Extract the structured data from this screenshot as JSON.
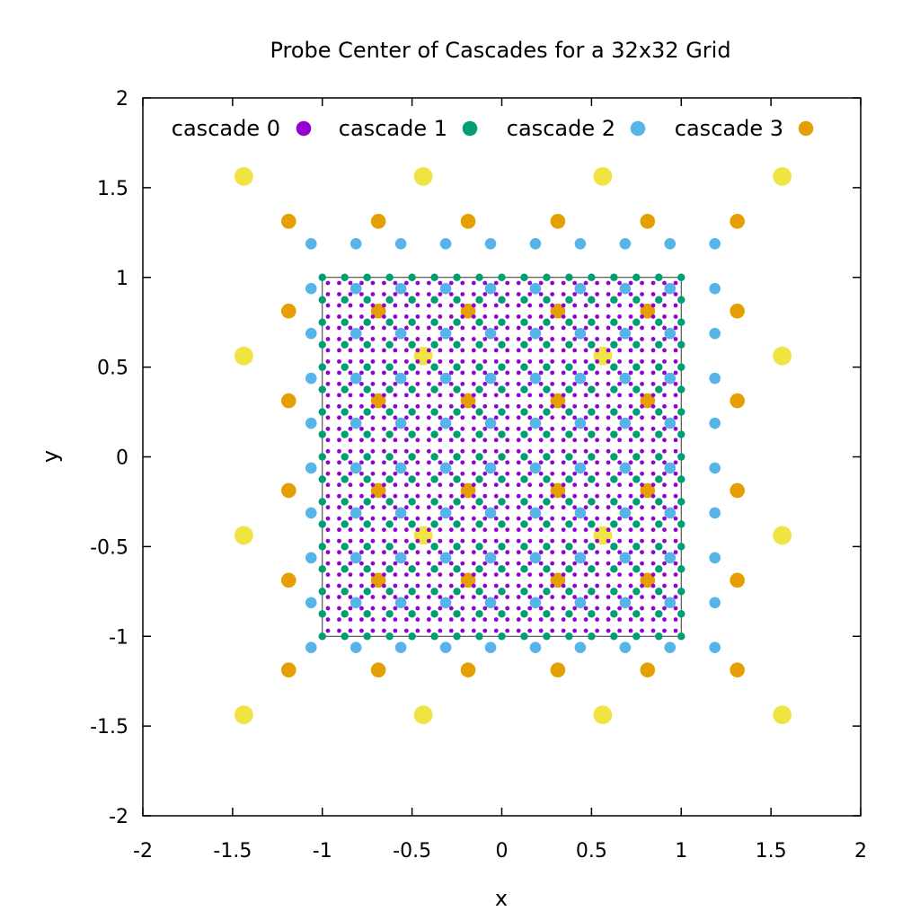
{
  "chart_data": {
    "type": "scatter",
    "title": "Probe Center of Cascades for a 32x32 Grid",
    "xlabel": "x",
    "ylabel": "y",
    "xlim": [
      -2,
      2
    ],
    "ylim": [
      -2,
      2
    ],
    "xticks": [
      "-2",
      "-1.5",
      "-1",
      "-0.5",
      "0",
      "0.5",
      "1",
      "1.5",
      "2"
    ],
    "yticks": [
      "-2",
      "-1.5",
      "-1",
      "-0.5",
      "0",
      "0.5",
      "1",
      "1.5",
      "2"
    ],
    "grid": false,
    "legend_position": "top",
    "boundary_box": [
      -1,
      -1,
      1,
      1
    ],
    "series": [
      {
        "name": "cascade 0",
        "color": "#9400d3",
        "first": -0.96875,
        "step": 0.0625,
        "count": 32,
        "shape": "filled-circle"
      },
      {
        "name": "cascade 1",
        "color": "#009e73",
        "first": -1.0,
        "step": 0.125,
        "count": 17,
        "shape": "filled-circle"
      },
      {
        "name": "cascade 2",
        "color": "#56b4e9",
        "first": -1.0625,
        "step": 0.25,
        "count": 10,
        "shape": "filled-circle"
      },
      {
        "name": "cascade 3",
        "color": "#e69f00",
        "first": -1.1875,
        "step": 0.5,
        "count": 6,
        "shape": "filled-circle"
      },
      {
        "name": "",
        "color": "#f0e442",
        "first": -1.4375,
        "step": 1.0,
        "count": 4,
        "shape": "filled-circle"
      }
    ]
  }
}
